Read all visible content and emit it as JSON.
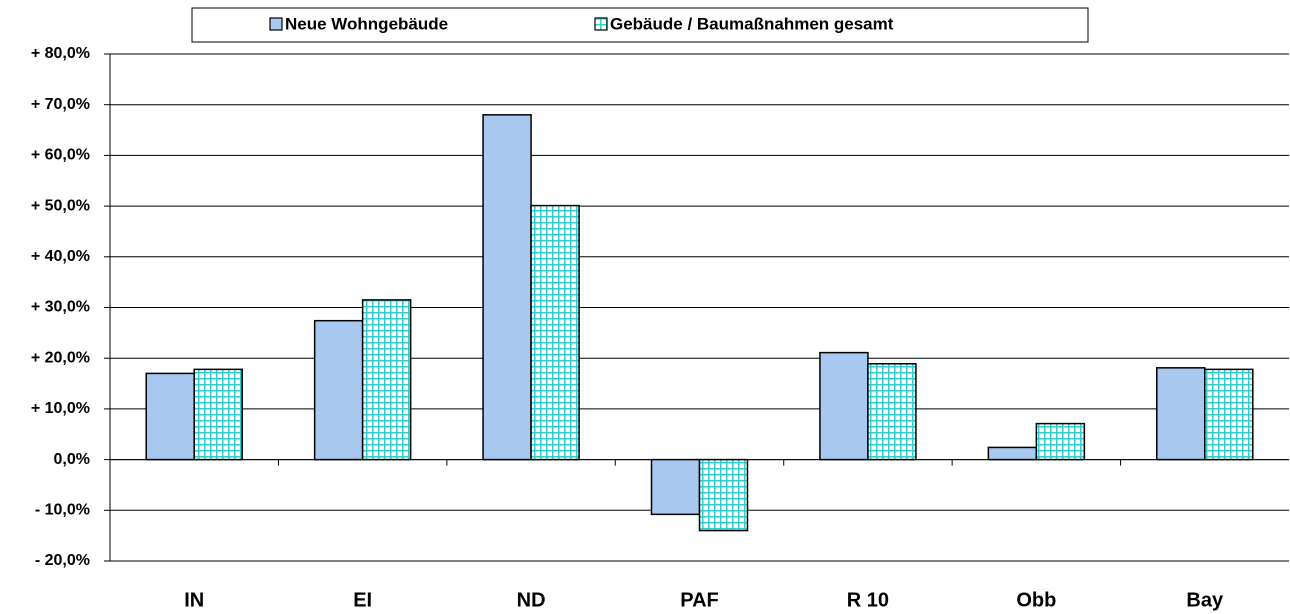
{
  "chart_data": {
    "type": "bar",
    "categories": [
      "IN",
      "EI",
      "ND",
      "PAF",
      "R 10",
      "Obb",
      "Bay"
    ],
    "series": [
      {
        "name": "Neue Wohngebäude",
        "color": "#a9c8f0",
        "values": [
          17.0,
          27.4,
          68.0,
          -10.8,
          21.1,
          2.4,
          18.1
        ]
      },
      {
        "name": "Gebäude / Baumaßnahmen gesamt",
        "color": "#33cccc",
        "pattern": "grid",
        "values": [
          17.8,
          31.5,
          50.1,
          -14.0,
          18.9,
          7.1,
          17.8
        ]
      }
    ],
    "ylim": [
      -20,
      80
    ],
    "yticks": [
      {
        "value": -20,
        "label": "- 20,0%"
      },
      {
        "value": -10,
        "label": "- 10,0%"
      },
      {
        "value": 0,
        "label": "0,0%"
      },
      {
        "value": 10,
        "label": "+ 10,0%"
      },
      {
        "value": 20,
        "label": "+ 20,0%"
      },
      {
        "value": 30,
        "label": "+ 30,0%"
      },
      {
        "value": 40,
        "label": "+ 40,0%"
      },
      {
        "value": 50,
        "label": "+ 50,0%"
      },
      {
        "value": 60,
        "label": "+ 60,0%"
      },
      {
        "value": 70,
        "label": "+ 70,0%"
      },
      {
        "value": 80,
        "label": "+ 80,0%"
      }
    ],
    "grid": true,
    "legend": "top"
  }
}
